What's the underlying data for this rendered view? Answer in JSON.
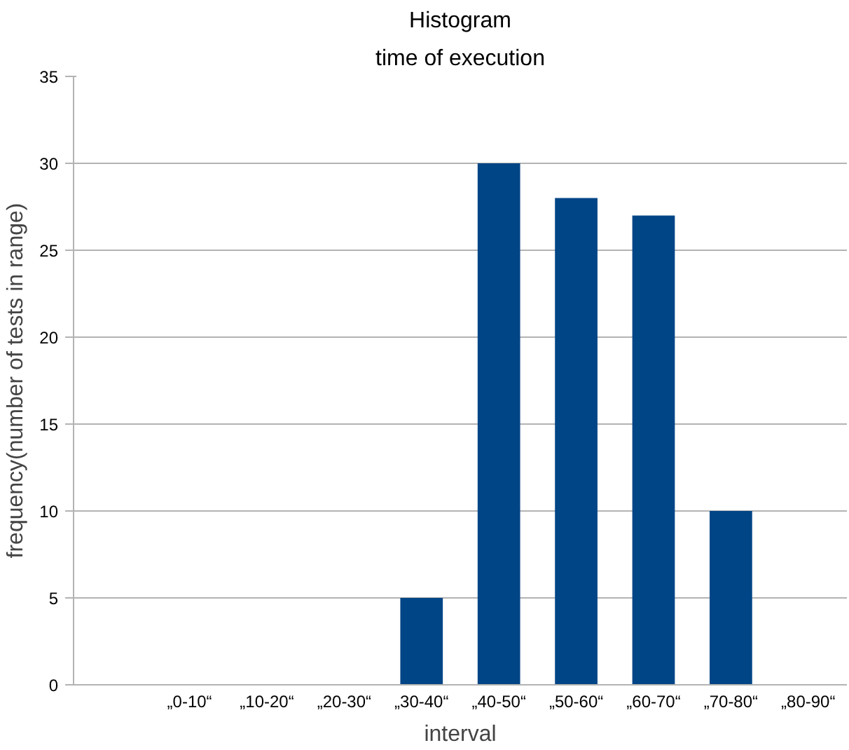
{
  "chart_data": {
    "type": "bar",
    "title": "Histogram",
    "subtitle": "time of execution",
    "xlabel": "interval",
    "ylabel": "frequency(number of tests in range)",
    "categories": [
      null,
      "„0-10“",
      "„10-20“",
      "„20-30“",
      "„30-40“",
      "„40-50“",
      "„50-60“",
      "„60-70“",
      "„70-80“",
      "„80-90“"
    ],
    "values": [
      0,
      0,
      0,
      0,
      5,
      30,
      28,
      27,
      10,
      0
    ],
    "color": "#004586",
    "ylim": [
      0,
      35
    ],
    "yticks": [
      0,
      5,
      10,
      15,
      20,
      25,
      30,
      35
    ],
    "grid": "y"
  }
}
